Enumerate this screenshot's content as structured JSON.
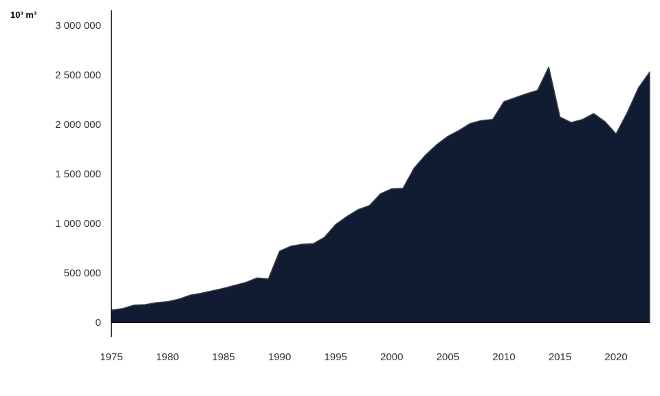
{
  "chart_data": {
    "type": "area",
    "unit_label": "10³ m³",
    "x": [
      1975,
      1976,
      1977,
      1978,
      1979,
      1980,
      1981,
      1982,
      1983,
      1984,
      1985,
      1986,
      1987,
      1988,
      1989,
      1990,
      1991,
      1992,
      1993,
      1994,
      1995,
      1996,
      1997,
      1998,
      1999,
      2000,
      2001,
      2002,
      2003,
      2004,
      2005,
      2006,
      2007,
      2008,
      2009,
      2010,
      2011,
      2012,
      2013,
      2014,
      2015,
      2016,
      2017,
      2018,
      2019,
      2020,
      2021,
      2022,
      2023
    ],
    "series": [
      {
        "values": [
          125000,
          140000,
          175000,
          180000,
          200000,
          210000,
          235000,
          275000,
          295000,
          320000,
          345000,
          375000,
          405000,
          450000,
          440000,
          720000,
          770000,
          790000,
          795000,
          860000,
          990000,
          1070000,
          1140000,
          1180000,
          1300000,
          1350000,
          1355000,
          1560000,
          1690000,
          1795000,
          1880000,
          1940000,
          2010000,
          2040000,
          2050000,
          2230000,
          2270000,
          2310000,
          2345000,
          2580000,
          2075000,
          2020000,
          2050000,
          2110000,
          2030000,
          1905000,
          2120000,
          2370000,
          2530000
        ]
      }
    ],
    "xlim": [
      1975,
      2023
    ],
    "ylim": [
      0,
      3000000
    ],
    "x_ticks": [
      1975,
      1980,
      1985,
      1990,
      1995,
      2000,
      2005,
      2010,
      2015,
      2020
    ],
    "y_ticks": [
      0,
      500000,
      1000000,
      1500000,
      2000000,
      2500000,
      3000000
    ],
    "y_tick_labels": [
      "0",
      "500 000",
      "1 000 000",
      "1 500 000",
      "2 000 000",
      "2 500 000",
      "3 000 000"
    ],
    "grid": false,
    "colors": {
      "fill": "#111c33",
      "stroke": "#3a3f4a",
      "axis": "#000000",
      "text": "#333333"
    }
  }
}
